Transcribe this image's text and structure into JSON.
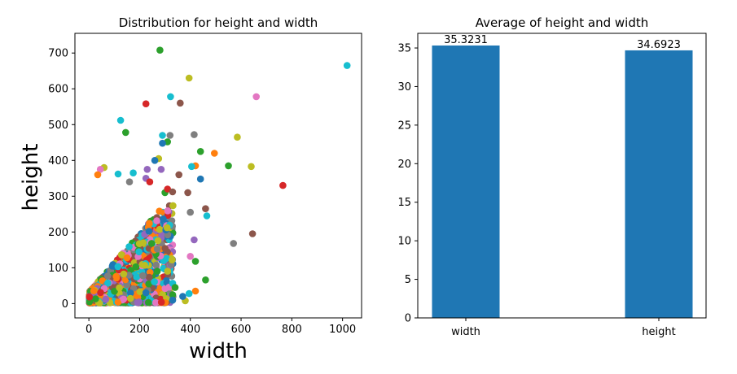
{
  "chart_data": [
    {
      "type": "scatter",
      "title": "Distribution for height and width",
      "xlabel": "width",
      "ylabel": "height",
      "xlim": [
        -55,
        1075
      ],
      "ylim": [
        -40,
        755
      ],
      "xticks": [
        0,
        200,
        400,
        600,
        800,
        1000
      ],
      "yticks": [
        0,
        100,
        200,
        300,
        400,
        500,
        600,
        700
      ],
      "grid": false,
      "palette": [
        "#1f77b4",
        "#ff7f0e",
        "#2ca02c",
        "#d62728",
        "#9467bd",
        "#8c564b",
        "#e377c2",
        "#7f7f7f",
        "#bcbd22",
        "#17becf"
      ],
      "points": [
        [
          280,
          708,
          "#2ca02c"
        ],
        [
          1018,
          665,
          "#17becf"
        ],
        [
          395,
          630,
          "#bcbd22"
        ],
        [
          660,
          578,
          "#e377c2"
        ],
        [
          322,
          578,
          "#17becf"
        ],
        [
          360,
          560,
          "#8c564b"
        ],
        [
          225,
          558,
          "#d62728"
        ],
        [
          125,
          512,
          "#17becf"
        ],
        [
          145,
          478,
          "#2ca02c"
        ],
        [
          415,
          472,
          "#7f7f7f"
        ],
        [
          290,
          470,
          "#17becf"
        ],
        [
          320,
          470,
          "#7f7f7f"
        ],
        [
          585,
          465,
          "#bcbd22"
        ],
        [
          310,
          452,
          "#2ca02c"
        ],
        [
          290,
          448,
          "#1f77b4"
        ],
        [
          440,
          425,
          "#2ca02c"
        ],
        [
          495,
          420,
          "#ff7f0e"
        ],
        [
          275,
          405,
          "#bcbd22"
        ],
        [
          260,
          400,
          "#1f77b4"
        ],
        [
          550,
          385,
          "#2ca02c"
        ],
        [
          640,
          383,
          "#bcbd22"
        ],
        [
          420,
          385,
          "#ff7f0e"
        ],
        [
          405,
          383,
          "#17becf"
        ],
        [
          60,
          380,
          "#bcbd22"
        ],
        [
          45,
          375,
          "#e377c2"
        ],
        [
          230,
          375,
          "#9467bd"
        ],
        [
          285,
          375,
          "#9467bd"
        ],
        [
          35,
          360,
          "#ff7f0e"
        ],
        [
          115,
          362,
          "#17becf"
        ],
        [
          175,
          365,
          "#17becf"
        ],
        [
          355,
          360,
          "#8c564b"
        ],
        [
          440,
          348,
          "#1f77b4"
        ],
        [
          160,
          340,
          "#7f7f7f"
        ],
        [
          225,
          350,
          "#9467bd"
        ],
        [
          240,
          340,
          "#d62728"
        ],
        [
          765,
          330,
          "#d62728"
        ],
        [
          300,
          310,
          "#2ca02c"
        ],
        [
          310,
          320,
          "#d62728"
        ],
        [
          330,
          312,
          "#8c564b"
        ],
        [
          390,
          310,
          "#8c564b"
        ],
        [
          400,
          255,
          "#7f7f7f"
        ],
        [
          460,
          265,
          "#8c564b"
        ],
        [
          465,
          245,
          "#17becf"
        ],
        [
          570,
          168,
          "#7f7f7f"
        ],
        [
          645,
          195,
          "#8c564b"
        ],
        [
          415,
          178,
          "#9467bd"
        ],
        [
          400,
          132,
          "#e377c2"
        ],
        [
          420,
          118,
          "#2ca02c"
        ],
        [
          460,
          66,
          "#2ca02c"
        ],
        [
          420,
          35,
          "#ff7f0e"
        ],
        [
          395,
          28,
          "#17becf"
        ],
        [
          380,
          8,
          "#bcbd22"
        ],
        [
          370,
          20,
          "#1f77b4"
        ],
        [
          340,
          45,
          "#2ca02c"
        ]
      ],
      "cluster_seed": 12345,
      "cluster_count": 1400
    },
    {
      "type": "bar",
      "title": "Average of height and width",
      "categories": [
        "width",
        "height"
      ],
      "values": [
        35.3231,
        34.6923
      ],
      "value_labels": [
        "35.3231",
        "34.6923"
      ],
      "ylim": [
        0,
        36.9
      ],
      "yticks": [
        0,
        5,
        10,
        15,
        20,
        25,
        30,
        35
      ],
      "bar_color": "#1f77b4",
      "grid": false
    }
  ]
}
